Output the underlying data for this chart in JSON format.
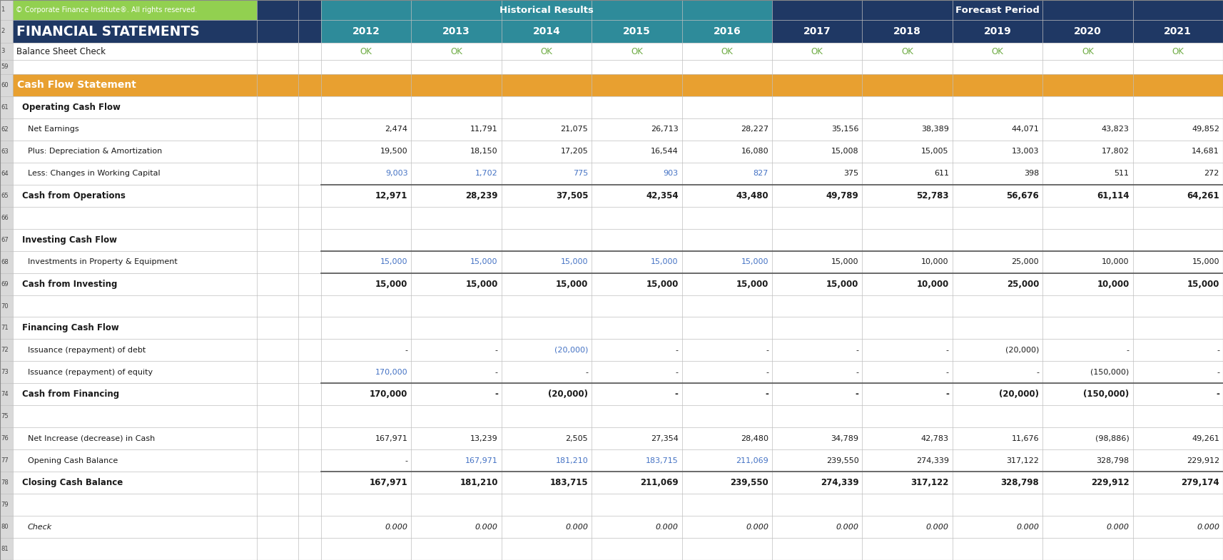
{
  "title_row1_left": "© Corporate Finance Institute®. All rights reserved.",
  "title_row2": "FINANCIAL STATEMENTS",
  "row3_label": "Balance Sheet Check",
  "section_header": "Cash Flow Statement",
  "years": [
    "2012",
    "2013",
    "2014",
    "2015",
    "2016",
    "2017",
    "2018",
    "2019",
    "2020",
    "2021"
  ],
  "col_header_hist": "Historical Results",
  "col_header_fore": "Forecast Period",
  "rows": [
    {
      "num": "61",
      "label": "Operating Cash Flow",
      "bold": true,
      "italic": false,
      "indent": 1,
      "values": null,
      "colors": null
    },
    {
      "num": "62",
      "label": "Net Earnings",
      "bold": false,
      "italic": false,
      "indent": 2,
      "values": [
        "2,474",
        "11,791",
        "21,075",
        "26,713",
        "28,227",
        "35,156",
        "38,389",
        "44,071",
        "43,823",
        "49,852"
      ],
      "colors": [
        "k",
        "k",
        "k",
        "k",
        "k",
        "k",
        "k",
        "k",
        "k",
        "k"
      ]
    },
    {
      "num": "63",
      "label": "Plus: Depreciation & Amortization",
      "bold": false,
      "italic": false,
      "indent": 2,
      "values": [
        "19,500",
        "18,150",
        "17,205",
        "16,544",
        "16,080",
        "15,008",
        "15,005",
        "13,003",
        "17,802",
        "14,681"
      ],
      "colors": [
        "k",
        "k",
        "k",
        "k",
        "k",
        "k",
        "k",
        "k",
        "k",
        "k"
      ]
    },
    {
      "num": "64",
      "label": "Less: Changes in Working Capital",
      "bold": false,
      "italic": false,
      "indent": 2,
      "values": [
        "9,003",
        "1,702",
        "775",
        "903",
        "827",
        "375",
        "611",
        "398",
        "511",
        "272"
      ],
      "colors": [
        "b",
        "b",
        "b",
        "b",
        "b",
        "k",
        "k",
        "k",
        "k",
        "k"
      ]
    },
    {
      "num": "65",
      "label": "Cash from Operations",
      "bold": true,
      "italic": false,
      "indent": 1,
      "values": [
        "12,971",
        "28,239",
        "37,505",
        "42,354",
        "43,480",
        "49,789",
        "52,783",
        "56,676",
        "61,114",
        "64,261"
      ],
      "colors": [
        "k",
        "k",
        "k",
        "k",
        "k",
        "k",
        "k",
        "k",
        "k",
        "k"
      ],
      "topline": true
    },
    {
      "num": "66",
      "label": "",
      "bold": false,
      "italic": false,
      "indent": 0,
      "values": null,
      "colors": null
    },
    {
      "num": "67",
      "label": "Investing Cash Flow",
      "bold": true,
      "italic": false,
      "indent": 1,
      "values": null,
      "colors": null
    },
    {
      "num": "68",
      "label": "Investments in Property & Equipment",
      "bold": false,
      "italic": false,
      "indent": 2,
      "values": [
        "15,000",
        "15,000",
        "15,000",
        "15,000",
        "15,000",
        "15,000",
        "10,000",
        "25,000",
        "10,000",
        "15,000"
      ],
      "colors": [
        "b",
        "b",
        "b",
        "b",
        "b",
        "k",
        "k",
        "k",
        "k",
        "k"
      ],
      "topline": true
    },
    {
      "num": "69",
      "label": "Cash from Investing",
      "bold": true,
      "italic": false,
      "indent": 1,
      "values": [
        "15,000",
        "15,000",
        "15,000",
        "15,000",
        "15,000",
        "15,000",
        "10,000",
        "25,000",
        "10,000",
        "15,000"
      ],
      "colors": [
        "k",
        "k",
        "k",
        "k",
        "k",
        "k",
        "k",
        "k",
        "k",
        "k"
      ],
      "topline": true
    },
    {
      "num": "70",
      "label": "",
      "bold": false,
      "italic": false,
      "indent": 0,
      "values": null,
      "colors": null
    },
    {
      "num": "71",
      "label": "Financing Cash Flow",
      "bold": true,
      "italic": false,
      "indent": 1,
      "values": null,
      "colors": null
    },
    {
      "num": "72",
      "label": "Issuance (repayment) of debt",
      "bold": false,
      "italic": false,
      "indent": 2,
      "values": [
        "-",
        "-",
        "(20,000)",
        "-",
        "-",
        "-",
        "-",
        "(20,000)",
        "-",
        "-"
      ],
      "colors": [
        "k",
        "k",
        "b",
        "k",
        "k",
        "k",
        "k",
        "k",
        "k",
        "k"
      ]
    },
    {
      "num": "73",
      "label": "Issuance (repayment) of equity",
      "bold": false,
      "italic": false,
      "indent": 2,
      "values": [
        "170,000",
        "-",
        "-",
        "-",
        "-",
        "-",
        "-",
        "-",
        "(150,000)",
        "-"
      ],
      "colors": [
        "b",
        "k",
        "k",
        "k",
        "k",
        "k",
        "k",
        "k",
        "k",
        "k"
      ]
    },
    {
      "num": "74",
      "label": "Cash from Financing",
      "bold": true,
      "italic": false,
      "indent": 1,
      "values": [
        "170,000",
        "-",
        "(20,000)",
        "-",
        "-",
        "-",
        "-",
        "(20,000)",
        "(150,000)",
        "-"
      ],
      "colors": [
        "k",
        "k",
        "k",
        "k",
        "k",
        "k",
        "k",
        "k",
        "k",
        "k"
      ],
      "topline": true
    },
    {
      "num": "75",
      "label": "",
      "bold": false,
      "italic": false,
      "indent": 0,
      "values": null,
      "colors": null
    },
    {
      "num": "76",
      "label": "Net Increase (decrease) in Cash",
      "bold": false,
      "italic": false,
      "indent": 2,
      "values": [
        "167,971",
        "13,239",
        "2,505",
        "27,354",
        "28,480",
        "34,789",
        "42,783",
        "11,676",
        "(98,886)",
        "49,261"
      ],
      "colors": [
        "k",
        "k",
        "k",
        "k",
        "k",
        "k",
        "k",
        "k",
        "k",
        "k"
      ]
    },
    {
      "num": "77",
      "label": "Opening Cash Balance",
      "bold": false,
      "italic": false,
      "indent": 2,
      "values": [
        "-",
        "167,971",
        "181,210",
        "183,715",
        "211,069",
        "239,550",
        "274,339",
        "317,122",
        "328,798",
        "229,912"
      ],
      "colors": [
        "k",
        "b",
        "b",
        "b",
        "b",
        "k",
        "k",
        "k",
        "k",
        "k"
      ]
    },
    {
      "num": "78",
      "label": "Closing Cash Balance",
      "bold": true,
      "italic": false,
      "indent": 1,
      "values": [
        "167,971",
        "181,210",
        "183,715",
        "211,069",
        "239,550",
        "274,339",
        "317,122",
        "328,798",
        "229,912",
        "279,174"
      ],
      "colors": [
        "k",
        "k",
        "k",
        "k",
        "k",
        "k",
        "k",
        "k",
        "k",
        "k"
      ],
      "topline": true
    },
    {
      "num": "79",
      "label": "",
      "bold": false,
      "italic": false,
      "indent": 0,
      "values": null,
      "colors": null
    },
    {
      "num": "80",
      "label": "Check",
      "bold": false,
      "italic": true,
      "indent": 2,
      "values": [
        "0.000",
        "0.000",
        "0.000",
        "0.000",
        "0.000",
        "0.000",
        "0.000",
        "0.000",
        "0.000",
        "0.000"
      ],
      "colors": [
        "k",
        "k",
        "k",
        "k",
        "k",
        "k",
        "k",
        "k",
        "k",
        "k"
      ]
    },
    {
      "num": "81",
      "label": "",
      "bold": false,
      "italic": false,
      "indent": 0,
      "values": null,
      "colors": null
    }
  ],
  "bg_navy": "#1f3864",
  "bg_teal": "#2e8b9a",
  "bg_orange": "#e8a030",
  "bg_light_green": "#92d050",
  "bg_white": "#ffffff",
  "bg_light_grey": "#d9d9d9",
  "bg_row_alt": "#f2f2f2",
  "text_white": "#ffffff",
  "text_dark": "#1a1a1a",
  "text_blue": "#4472c4",
  "text_green": "#70ad47",
  "grid_color": "#bfbfbf"
}
